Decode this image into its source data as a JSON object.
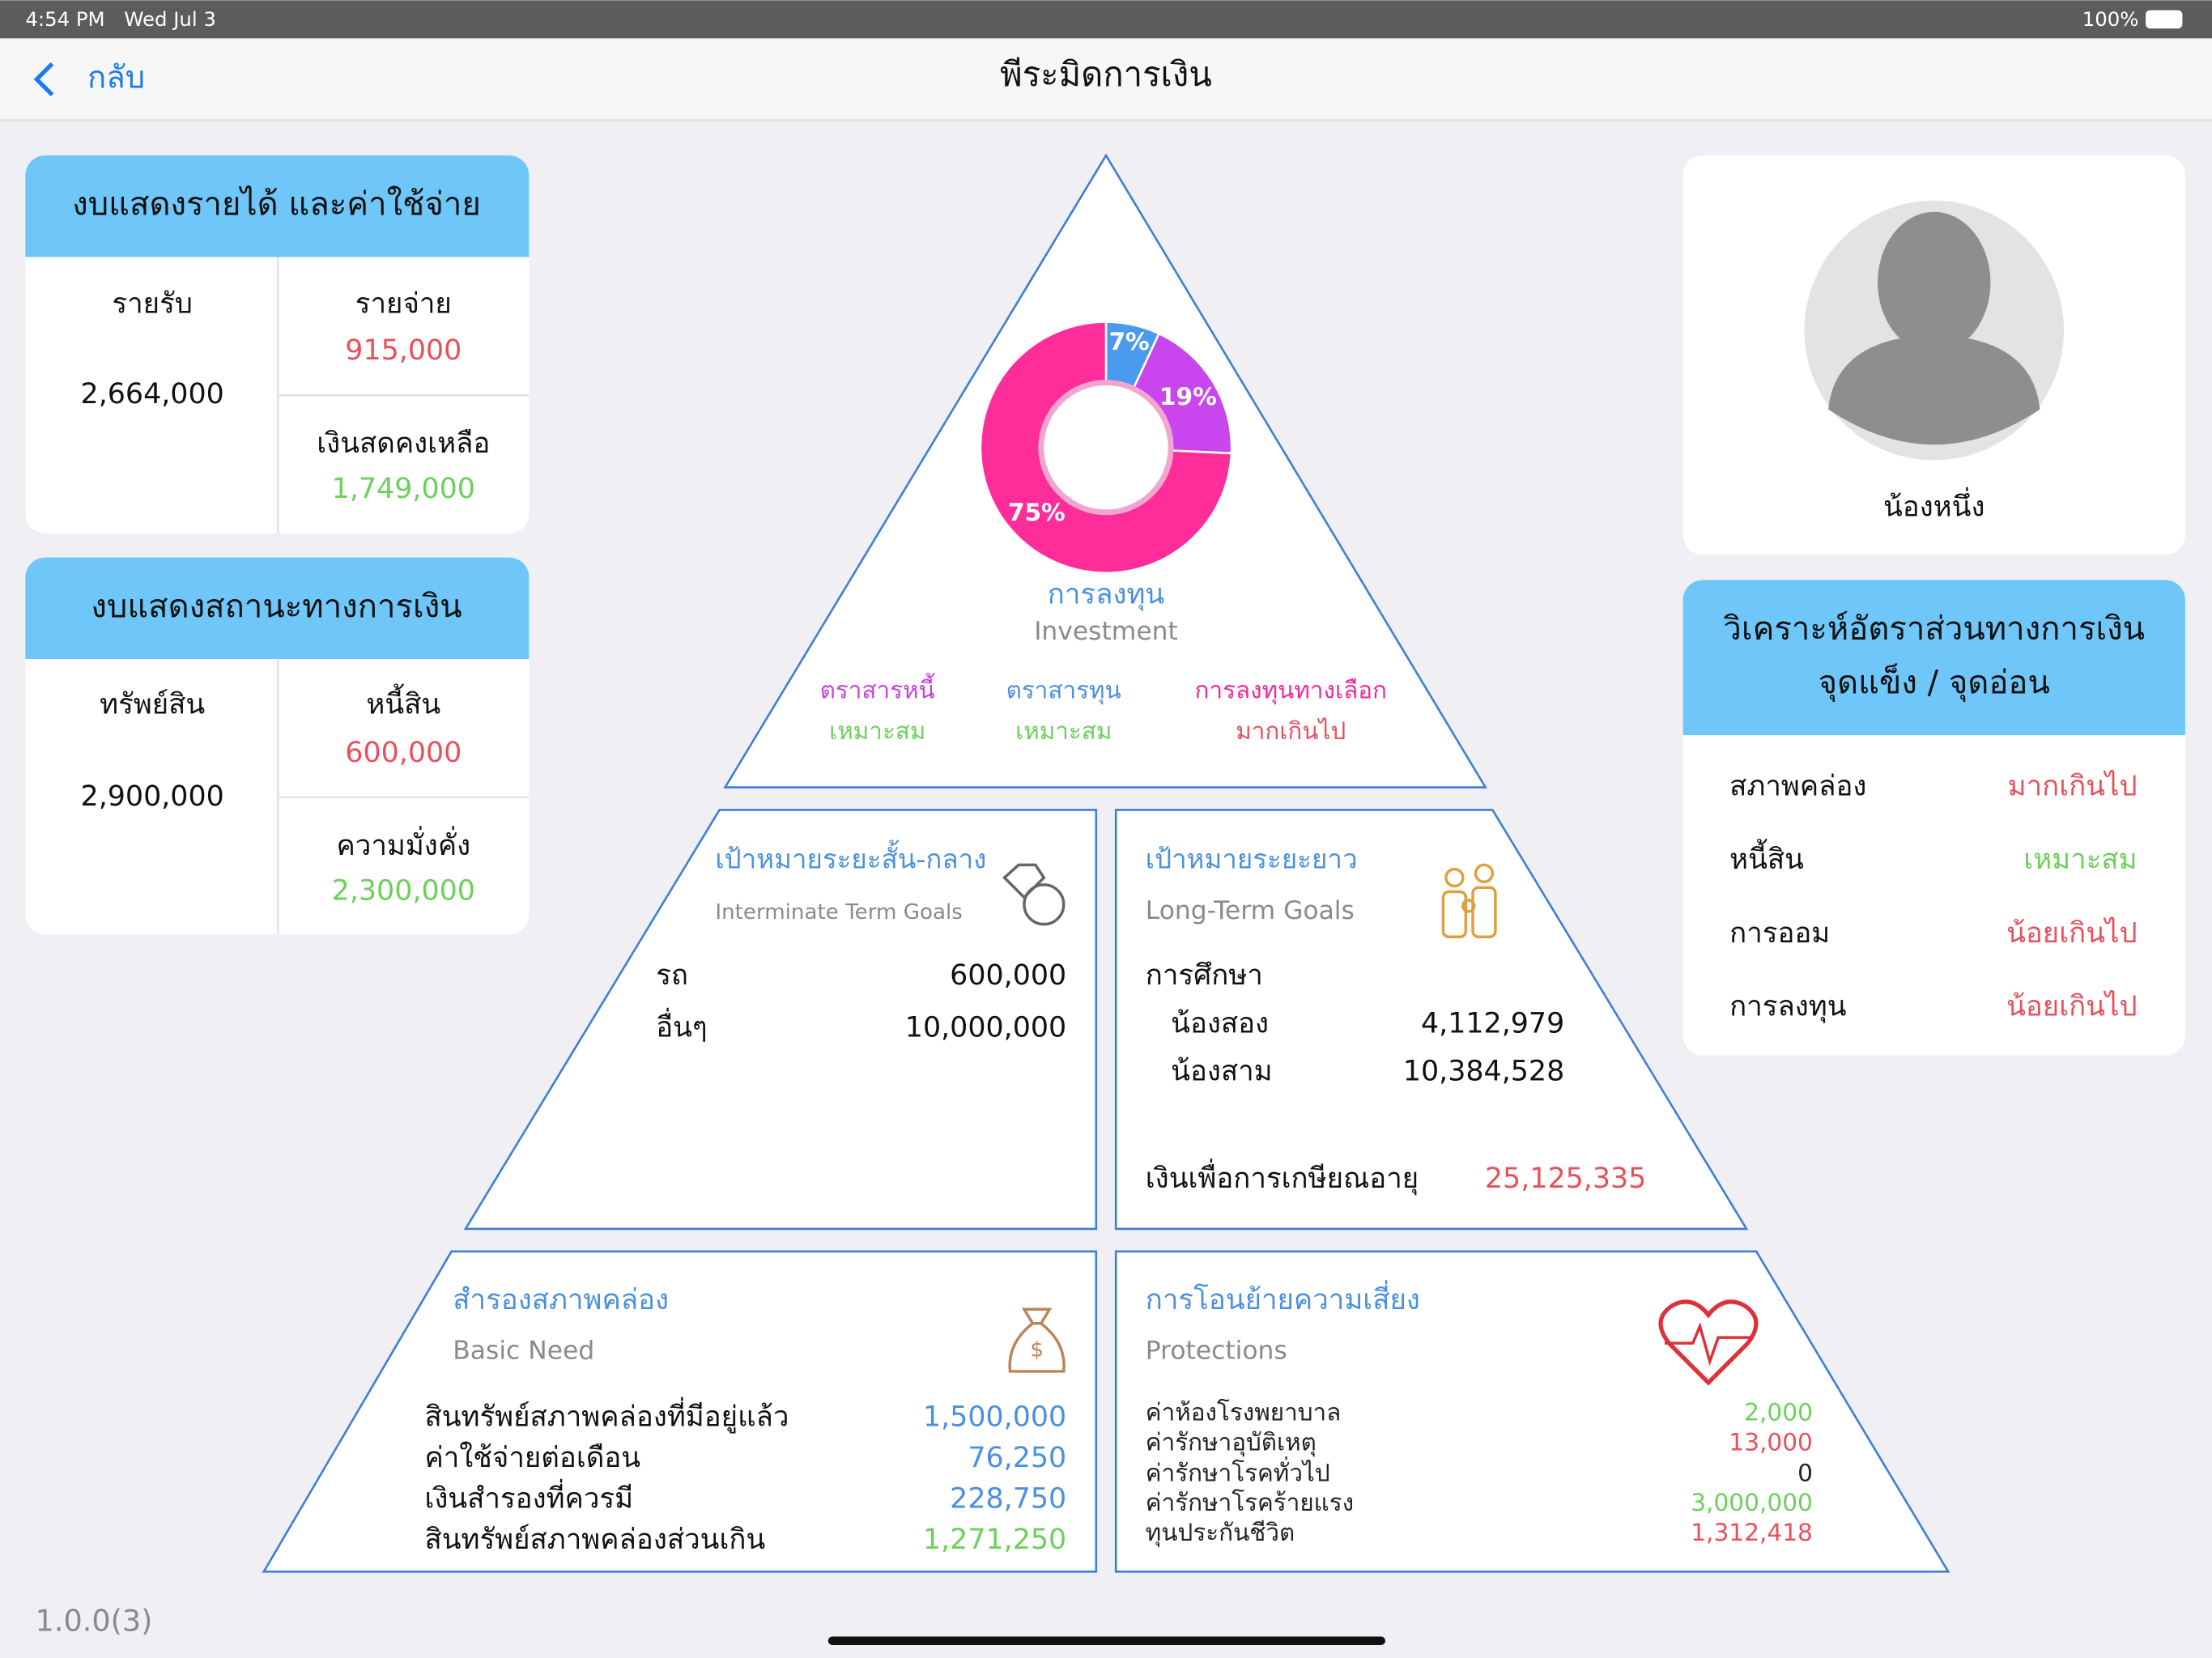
{
  "status_bar": {
    "time": "4:54 PM",
    "date": "Wed Jul 3",
    "battery": "100%"
  },
  "nav": {
    "back": "กลับ",
    "title": "พีระมิดการเงิน"
  },
  "income_statement": {
    "title": "งบแสดงรายได้ และค่าใช้จ่าย",
    "income_label": "รายรับ",
    "income": "2,664,000",
    "expense_label": "รายจ่าย",
    "expense": "915,000",
    "cash_label": "เงินสดคงเหลือ",
    "cash": "1,749,000"
  },
  "balance_sheet": {
    "title": "งบแสดงสถานะทางการเงิน",
    "assets_label": "ทรัพย์สิน",
    "assets": "2,900,000",
    "debt_label": "หนี้สิน",
    "debt": "600,000",
    "wealth_label": "ความมั่งคั่ง",
    "wealth": "2,300,000"
  },
  "profile": {
    "name": "น้องหนึ่ง"
  },
  "analysis": {
    "title_lines": [
      "วิเคราะห์อัตราส่วนทางการเงิน",
      "จุดแข็ง / จุดอ่อน"
    ],
    "rows": [
      [
        "สภาพคล่อง",
        "มากเกินไป"
      ],
      [
        "หนี้สิน",
        "เหมาะสม"
      ],
      [
        "การออม",
        "น้อยเกินไป"
      ],
      [
        "การลงทุน",
        "น้อยเกินไป"
      ]
    ]
  },
  "investment": {
    "title": "การลงทุน",
    "subtitle": "Investment",
    "donut": {
      "type": "pie",
      "values": [
        7,
        19,
        75
      ],
      "value_labels": [
        "7%",
        "19%",
        "75%"
      ],
      "colors": [
        "#4a9af0",
        "#c946ef",
        "#ff2d9a"
      ]
    },
    "items": [
      [
        "ตราสารหนี้",
        "เหมาะสม"
      ],
      [
        "ตราสารทุน",
        "เหมาะสม"
      ],
      [
        "การลงทุนทางเลือก",
        "มากเกินไป"
      ]
    ]
  },
  "mid_term": {
    "title": "เป้าหมายระยะสั้น-กลาง",
    "subtitle": "Interminate Term Goals",
    "rows": [
      [
        "รถ",
        "600,000"
      ],
      [
        "อื่นๆ",
        "10,000,000"
      ]
    ]
  },
  "long_term": {
    "title": "เป้าหมายระยะยาว",
    "subtitle": "Long-Term Goals",
    "education_label": "การศึกษา",
    "rows": [
      [
        "น้องสอง",
        "4,112,979"
      ],
      [
        "น้องสาม",
        "10,384,528"
      ]
    ],
    "retirement_label": "เงินเพื่อการเกษียณอายุ",
    "retirement": "25,125,335"
  },
  "basic_need": {
    "title": "สำรองสภาพคล่อง",
    "subtitle": "Basic Need",
    "rows": [
      [
        "สินทรัพย์สภาพคล่องที่มีอยู่แล้ว",
        "1,500,000"
      ],
      [
        "ค่าใช้จ่ายต่อเดือน",
        "76,250"
      ],
      [
        "เงินสำรองที่ควรมี",
        "228,750"
      ],
      [
        "สินทรัพย์สภาพคล่องส่วนเกิน",
        "1,271,250"
      ]
    ]
  },
  "protections": {
    "title": "การโอนย้ายความเสี่ยง",
    "subtitle": "Protections",
    "rows": [
      [
        "ค่าห้องโรงพยาบาล",
        "2,000"
      ],
      [
        "ค่ารักษาอุบัติเหตุ",
        "13,000"
      ],
      [
        "ค่ารักษาโรคทั่วไป",
        "0"
      ],
      [
        "ค่ารักษาโรคร้ายแรง",
        "3,000,000"
      ],
      [
        "ทุนประกันชีวิต",
        "1,312,418"
      ]
    ]
  },
  "version": "1.0.0(3)"
}
